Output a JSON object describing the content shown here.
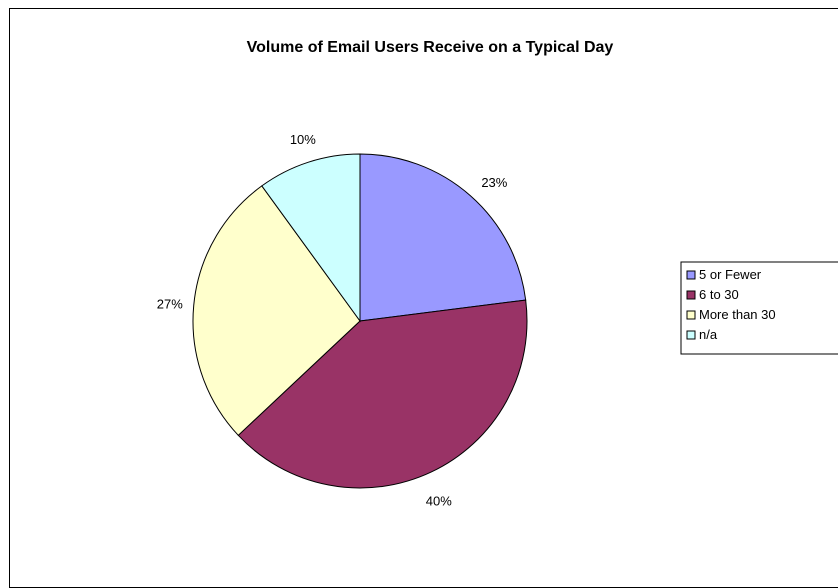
{
  "chart_data": {
    "type": "pie",
    "title": "Volume of Email Users Receive on a Typical Day",
    "categories": [
      "5 or Fewer",
      "6 to 30",
      "More than 30",
      "n/a"
    ],
    "values": [
      23,
      40,
      27,
      10
    ],
    "labels": [
      "23%",
      "40%",
      "27%",
      "10%"
    ],
    "colors": [
      "#9999FF",
      "#993366",
      "#FFFFCC",
      "#CCFFFF"
    ],
    "legend_position": "right"
  }
}
